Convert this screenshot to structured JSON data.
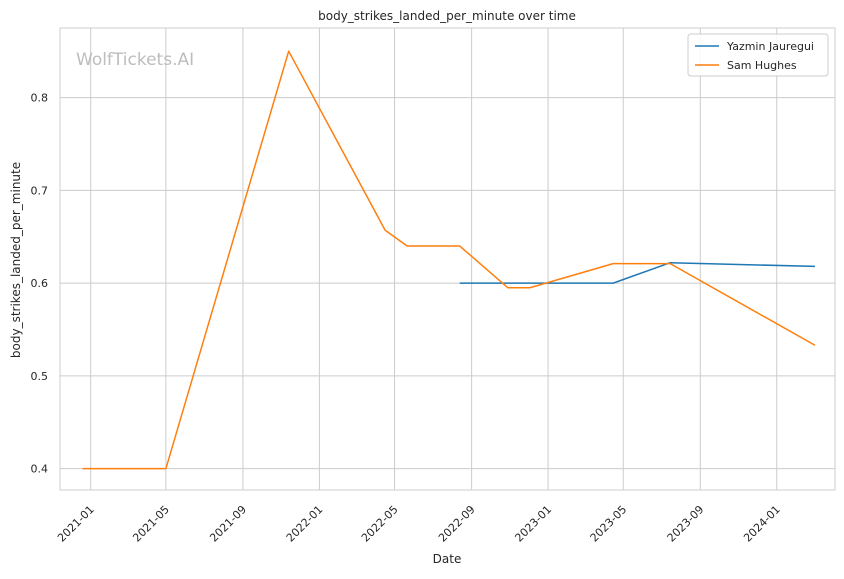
{
  "watermark": "WolfTickets.AI",
  "chart_data": {
    "type": "line",
    "title": "body_strikes_landed_per_minute over time",
    "xlabel": "Date",
    "ylabel": "body_strikes_landed_per_minute",
    "x_tick_labels": [
      "2021-01",
      "2021-05",
      "2021-09",
      "2022-01",
      "2022-05",
      "2022-09",
      "2023-01",
      "2023-05",
      "2023-09",
      "2024-01"
    ],
    "y_tick_labels": [
      "0.4",
      "0.5",
      "0.6",
      "0.7",
      "0.8"
    ],
    "ylim": [
      0.377,
      0.875
    ],
    "xlim": [
      "2020-11-13",
      "2024-04-03"
    ],
    "grid": true,
    "legend_position": "top-right",
    "series": [
      {
        "name": "Yazmin Jauregui",
        "color": "#1f77b4",
        "points": [
          {
            "x": "2022-08-13",
            "y": 0.6
          },
          {
            "x": "2023-04-15",
            "y": 0.6
          },
          {
            "x": "2023-07-15",
            "y": 0.622
          },
          {
            "x": "2024-03-02",
            "y": 0.618
          }
        ]
      },
      {
        "name": "Sam Hughes",
        "color": "#ff7f0e",
        "points": [
          {
            "x": "2020-12-19",
            "y": 0.4
          },
          {
            "x": "2021-05-01",
            "y": 0.4
          },
          {
            "x": "2021-11-13",
            "y": 0.85
          },
          {
            "x": "2022-04-16",
            "y": 0.657
          },
          {
            "x": "2022-05-21",
            "y": 0.64
          },
          {
            "x": "2022-08-13",
            "y": 0.64
          },
          {
            "x": "2022-10-29",
            "y": 0.595
          },
          {
            "x": "2022-12-03",
            "y": 0.595
          },
          {
            "x": "2023-04-15",
            "y": 0.621
          },
          {
            "x": "2023-07-15",
            "y": 0.621
          },
          {
            "x": "2024-03-02",
            "y": 0.533
          }
        ]
      }
    ]
  }
}
